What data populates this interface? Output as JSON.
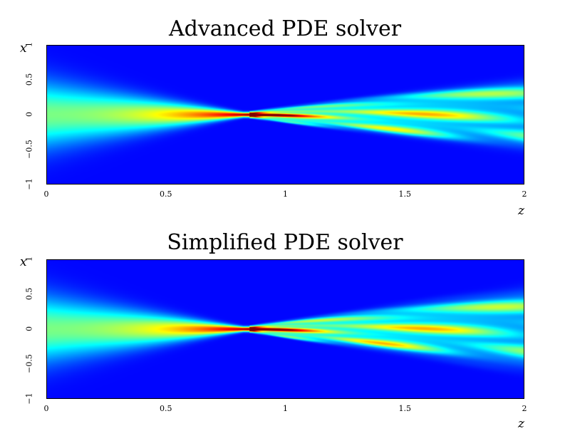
{
  "chart_data": [
    {
      "type": "heatmap",
      "title": "Advanced PDE solver",
      "xlabel": "z",
      "ylabel": "x",
      "xlim": [
        0,
        2
      ],
      "ylim": [
        -1,
        1
      ],
      "x_ticks": [
        "0",
        "0.5",
        "1",
        "1.5",
        "2"
      ],
      "y_ticks": [
        "−1",
        "−0.5",
        "0",
        "0.5",
        "1"
      ],
      "colormap": "jet",
      "focus_z": 0.85,
      "interference_fringes": 15
    },
    {
      "type": "heatmap",
      "title": "Simplified PDE solver",
      "xlabel": "z",
      "ylabel": "x",
      "xlim": [
        0,
        2
      ],
      "ylim": [
        -1,
        1
      ],
      "x_ticks": [
        "0",
        "0.5",
        "1",
        "1.5",
        "2"
      ],
      "y_ticks": [
        "−1",
        "−0.5",
        "0",
        "0.5",
        "1"
      ],
      "colormap": "jet",
      "focus_z": 0.85,
      "interference_fringes": 15
    }
  ]
}
